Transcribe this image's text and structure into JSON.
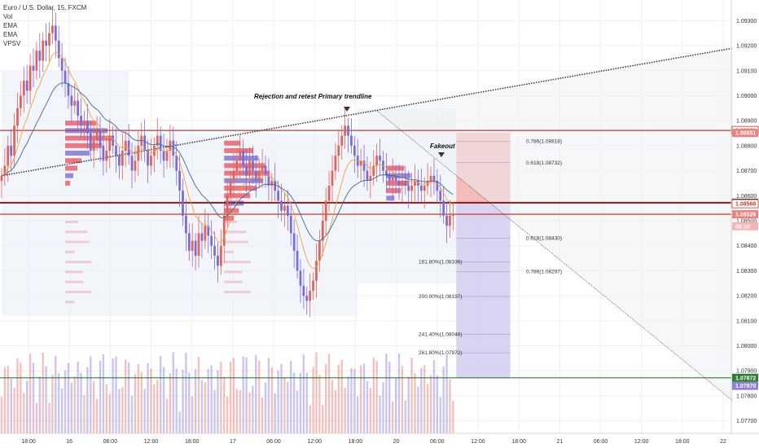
{
  "legend": {
    "title": "Euro / U.S. Dollar, 15, FXCM",
    "indicators": [
      "Vol",
      "EMA",
      "EMA",
      "VPSV"
    ]
  },
  "colors": {
    "up": "#e0625a",
    "down": "#7b6bd6",
    "ema_fast": "#f0a040",
    "ema_slow": "#3d6a9a",
    "trendline": "#333333",
    "red_line": "#c0392b",
    "dark_red_line": "#8b1a1a",
    "green_line": "#2e7d32",
    "stop_zone": "#f3b0b0",
    "target_zone": "#d2ccf0",
    "profile": "#e84c5a",
    "profile_alt": "#7563d6"
  },
  "annotations": {
    "rejection": "Rejection and retest Primary trendline",
    "fakeout": "Fakeout"
  },
  "chart_data": {
    "type": "candlestick",
    "symbol": "Euro / U.S. Dollar",
    "timeframe": "15",
    "source": "FXCM",
    "ylim": [
      1.0765,
      1.0935
    ],
    "price_axis_ticks": [
      1.093,
      1.092,
      1.091,
      1.09,
      1.089,
      1.088,
      1.087,
      1.086,
      1.085,
      1.084,
      1.083,
      1.082,
      1.081,
      1.08,
      1.079,
      1.078,
      1.077
    ],
    "price_axis_labels": [
      "1.09300",
      "1.09200",
      "1.09100",
      "1.09000",
      "1.08900",
      "1.08800",
      "1.08700",
      "1.08600",
      "1.08500",
      "1.08400",
      "1.08300",
      "1.08200",
      "1.08100",
      "1.08000",
      "1.07900",
      "1.07800",
      "1.07700"
    ],
    "time_axis_labels": [
      "18:00",
      "16",
      "06:00",
      "12:00",
      "18:00",
      "17",
      "06:00",
      "12:00",
      "18:00",
      "20",
      "06:00",
      "12:00",
      "18:00",
      "21",
      "06:00",
      "12:00",
      "18:00",
      "22"
    ],
    "price_badges": [
      {
        "label": "1.08861",
        "price": 1.08861,
        "style": "outline-red"
      },
      {
        "label": "1.08851",
        "price": 1.08851,
        "style": "red"
      },
      {
        "label": "1.08572",
        "price": 1.08572,
        "style": "dark"
      },
      {
        "label": "1.08568",
        "price": 1.08568,
        "style": "outline-red"
      },
      {
        "label": "1.08526",
        "price": 1.08526,
        "style": "red"
      },
      {
        "label": "08:18",
        "price": 1.08478,
        "style": "light-red"
      },
      {
        "label": "1.07872",
        "price": 1.07872,
        "style": "green"
      },
      {
        "label": "1.07870",
        "price": 1.0784,
        "style": "purple"
      }
    ],
    "horizontal_levels": [
      {
        "price": 1.08861,
        "color": "red_line"
      },
      {
        "price": 1.08572,
        "color": "dark_red_line"
      },
      {
        "price": 1.08526,
        "color": "red_line"
      },
      {
        "price": 1.07872,
        "color": "green_line"
      }
    ],
    "fib_upper": [
      {
        "label": "0.786(1.08818)",
        "price": 1.08818
      },
      {
        "label": "0.618(1.08732)",
        "price": 1.08732
      }
    ],
    "fib_lower": [
      {
        "label": "0.618(1.08430)",
        "price": 1.0843
      },
      {
        "label": "0.786(1.08297)",
        "price": 1.08297
      },
      {
        "label": "161.80%(1.08336)",
        "price": 1.08336
      },
      {
        "label": "200.00%(1.08197)",
        "price": 1.08197
      },
      {
        "label": "241.40%(1.08046)",
        "price": 1.08046
      },
      {
        "label": "261.80%(1.07972)",
        "price": 1.07972
      }
    ],
    "trendline_primary": {
      "from": [
        0,
        1.0868
      ],
      "to": [
        230,
        1.0919
      ]
    },
    "trendline_down": {
      "from": [
        118,
        1.0894
      ],
      "to": [
        230,
        1.0778
      ]
    },
    "stop_zone": {
      "bar_from": 143,
      "bar_to": 160,
      "top": 1.08852,
      "bottom": 1.08572
    },
    "target_zone": {
      "bar_from": 143,
      "bar_to": 160,
      "top": 1.08572,
      "bottom": 1.0787
    },
    "candles_close": [
      1.0868,
      1.0872,
      1.088,
      1.0876,
      1.0888,
      1.0895,
      1.09,
      1.0906,
      1.0902,
      1.0912,
      1.091,
      1.0918,
      1.0914,
      1.0922,
      1.092,
      1.0925,
      1.0928,
      1.0922,
      1.0915,
      1.091,
      1.0905,
      1.09,
      1.0896,
      1.0898,
      1.0892,
      1.0888,
      1.089,
      1.0885,
      1.0878,
      1.0882,
      1.0886,
      1.088,
      1.0874,
      1.0878,
      1.0884,
      1.088,
      1.0876,
      1.0872,
      1.0878,
      1.0882,
      1.0876,
      1.087,
      1.0874,
      1.088,
      1.0884,
      1.0878,
      1.0872,
      1.0876,
      1.088,
      1.0884,
      1.0878,
      1.0874,
      1.0878,
      1.0882,
      1.0876,
      1.087,
      1.0862,
      1.0852,
      1.0845,
      1.0838,
      1.0842,
      1.0836,
      1.0845,
      1.0842,
      1.0848,
      1.0844,
      1.084,
      1.0836,
      1.0832,
      1.084,
      1.0852,
      1.086,
      1.0866,
      1.087,
      1.0874,
      1.0878,
      1.0872,
      1.0868,
      1.0874,
      1.087,
      1.0866,
      1.087,
      1.0872,
      1.0868,
      1.0864,
      1.0866,
      1.0862,
      1.0858,
      1.0854,
      1.0856,
      1.0852,
      1.0845,
      1.0838,
      1.083,
      1.0824,
      1.082,
      1.0818,
      1.0822,
      1.0826,
      1.0834,
      1.0842,
      1.085,
      1.0858,
      1.0864,
      1.087,
      1.0876,
      1.088,
      1.0884,
      1.0888,
      1.0884,
      1.088,
      1.0876,
      1.0872,
      1.0874,
      1.087,
      1.0866,
      1.0868,
      1.0872,
      1.0876,
      1.0874,
      1.087,
      1.0868,
      1.0866,
      1.0868,
      1.0866,
      1.0864,
      1.0866,
      1.0864,
      1.0862,
      1.0864,
      1.0866,
      1.0864,
      1.0862,
      1.0864,
      1.0866,
      1.0868,
      1.0866,
      1.0862,
      1.0858,
      1.0852,
      1.0848,
      1.0852,
      1.08526
    ]
  }
}
